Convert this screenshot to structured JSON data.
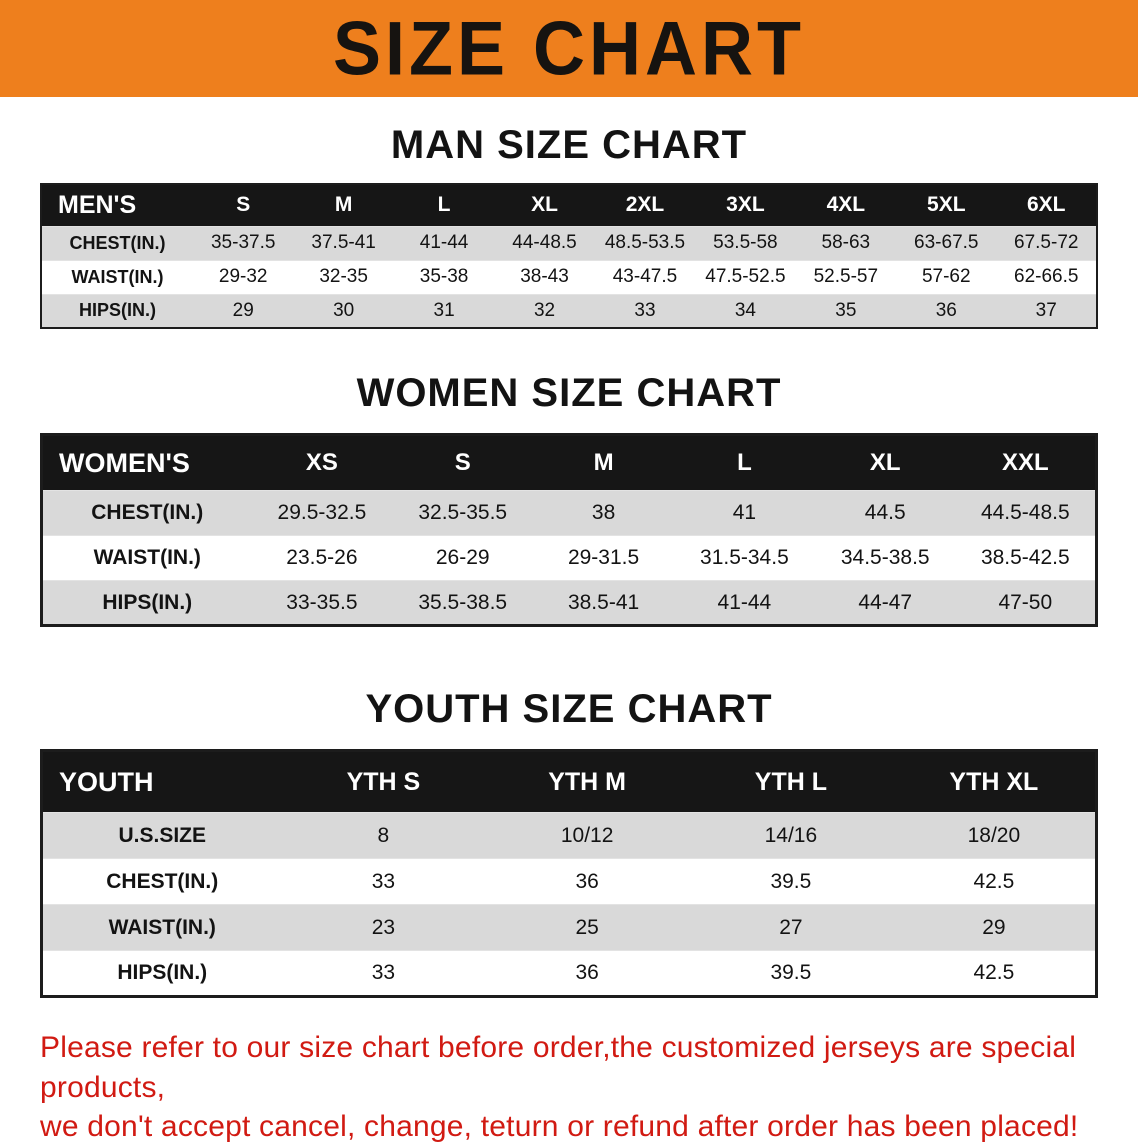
{
  "banner": {
    "title": "SIZE CHART"
  },
  "colors": {
    "banner_bg": "#ee7f1d",
    "header_bg": "#161616",
    "row_alt": "#d9d9d9",
    "footer_text": "#d11a12"
  },
  "sections": [
    {
      "heading": "MAN SIZE CHART",
      "table": {
        "header": [
          "MEN'S",
          "S",
          "M",
          "L",
          "XL",
          "2XL",
          "3XL",
          "4XL",
          "5XL",
          "6XL"
        ],
        "rows": [
          {
            "label": "CHEST(IN.)",
            "values": [
              "35-37.5",
              "37.5-41",
              "41-44",
              "44-48.5",
              "48.5-53.5",
              "53.5-58",
              "58-63",
              "63-67.5",
              "67.5-72"
            ]
          },
          {
            "label": "WAIST(IN.)",
            "values": [
              "29-32",
              "32-35",
              "35-38",
              "38-43",
              "43-47.5",
              "47.5-52.5",
              "52.5-57",
              "57-62",
              "62-66.5"
            ]
          },
          {
            "label": "HIPS(IN.)",
            "values": [
              "29",
              "30",
              "31",
              "32",
              "33",
              "34",
              "35",
              "36",
              "37"
            ]
          }
        ]
      }
    },
    {
      "heading": "WOMEN SIZE CHART",
      "table": {
        "header": [
          "WOMEN'S",
          "XS",
          "S",
          "M",
          "L",
          "XL",
          "XXL"
        ],
        "rows": [
          {
            "label": "CHEST(IN.)",
            "values": [
              "29.5-32.5",
              "32.5-35.5",
              "38",
              "41",
              "44.5",
              "44.5-48.5"
            ]
          },
          {
            "label": "WAIST(IN.)",
            "values": [
              "23.5-26",
              "26-29",
              "29-31.5",
              "31.5-34.5",
              "34.5-38.5",
              "38.5-42.5"
            ]
          },
          {
            "label": "HIPS(IN.)",
            "values": [
              "33-35.5",
              "35.5-38.5",
              "38.5-41",
              "41-44",
              "44-47",
              "47-50"
            ]
          }
        ]
      }
    },
    {
      "heading": "YOUTH SIZE CHART",
      "table": {
        "header": [
          "YOUTH",
          "YTH S",
          "YTH M",
          "YTH L",
          "YTH XL"
        ],
        "rows": [
          {
            "label": "U.S.SIZE",
            "values": [
              "8",
              "10/12",
              "14/16",
              "18/20"
            ]
          },
          {
            "label": "CHEST(IN.)",
            "values": [
              "33",
              "36",
              "39.5",
              "42.5"
            ]
          },
          {
            "label": "WAIST(IN.)",
            "values": [
              "23",
              "25",
              "27",
              "29"
            ]
          },
          {
            "label": "HIPS(IN.)",
            "values": [
              "33",
              "36",
              "39.5",
              "42.5"
            ]
          }
        ]
      }
    }
  ],
  "footer": {
    "line1": "Please refer to our size chart before order,the customized jerseys are special products,",
    "line2": "we don't accept cancel, change, teturn or refund after order has been placed!"
  }
}
